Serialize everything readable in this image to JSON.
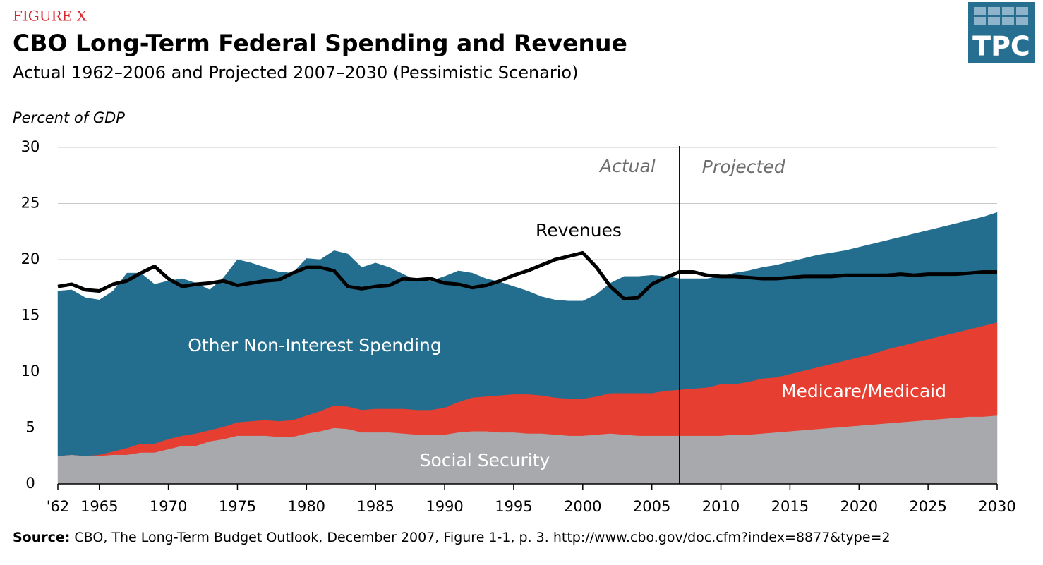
{
  "chart_data": {
    "type": "stacked-area",
    "figure_label": "FIGURE X",
    "title": "CBO Long-Term Federal Spending and Revenue",
    "subtitle": "Actual 1962–2006 and Projected 2007–2030 (Pessimistic Scenario)",
    "ylabel": "Percent of GDP",
    "logo": "TPC",
    "source_label": "Source:",
    "source": "CBO, The Long-Term Budget Outlook, December 2007, Figure 1-1, p. 3.  http://www.cbo.gov/doc.cfm?index=8877&type=2",
    "annotations": [
      "Actual",
      "Projected"
    ],
    "divider_x": 2007,
    "x": [
      1962,
      1963,
      1964,
      1965,
      1966,
      1967,
      1968,
      1969,
      1970,
      1971,
      1972,
      1973,
      1974,
      1975,
      1976,
      1977,
      1978,
      1979,
      1980,
      1981,
      1982,
      1983,
      1984,
      1985,
      1986,
      1987,
      1988,
      1989,
      1990,
      1991,
      1992,
      1993,
      1994,
      1995,
      1996,
      1997,
      1998,
      1999,
      2000,
      2001,
      2002,
      2003,
      2004,
      2005,
      2006,
      2007,
      2008,
      2009,
      2010,
      2011,
      2012,
      2013,
      2014,
      2015,
      2016,
      2017,
      2018,
      2019,
      2020,
      2021,
      2022,
      2023,
      2024,
      2025,
      2026,
      2027,
      2028,
      2029,
      2030
    ],
    "series": [
      {
        "name": "Social Security",
        "color": "#a7a9ac",
        "values": [
          2.5,
          2.6,
          2.5,
          2.5,
          2.6,
          2.6,
          2.8,
          2.8,
          3.1,
          3.4,
          3.4,
          3.8,
          4.0,
          4.3,
          4.3,
          4.3,
          4.2,
          4.2,
          4.5,
          4.7,
          5.0,
          4.9,
          4.6,
          4.6,
          4.6,
          4.5,
          4.4,
          4.4,
          4.4,
          4.6,
          4.7,
          4.7,
          4.6,
          4.6,
          4.5,
          4.5,
          4.4,
          4.3,
          4.3,
          4.4,
          4.5,
          4.4,
          4.3,
          4.3,
          4.3,
          4.3,
          4.3,
          4.3,
          4.3,
          4.4,
          4.4,
          4.5,
          4.6,
          4.7,
          4.8,
          4.9,
          5.0,
          5.1,
          5.2,
          5.3,
          5.4,
          5.5,
          5.6,
          5.7,
          5.8,
          5.9,
          6.0,
          6.0,
          6.1
        ]
      },
      {
        "name": "Medicare/Medicaid",
        "color": "#e63e30",
        "values": [
          0,
          0,
          0,
          0.1,
          0.3,
          0.6,
          0.8,
          0.8,
          0.9,
          0.9,
          1.1,
          1.0,
          1.1,
          1.2,
          1.3,
          1.4,
          1.4,
          1.5,
          1.6,
          1.8,
          2.0,
          2.0,
          2.0,
          2.1,
          2.1,
          2.2,
          2.2,
          2.2,
          2.4,
          2.7,
          3.0,
          3.1,
          3.3,
          3.4,
          3.5,
          3.4,
          3.3,
          3.3,
          3.3,
          3.4,
          3.6,
          3.7,
          3.8,
          3.8,
          4.0,
          4.1,
          4.2,
          4.3,
          4.6,
          4.5,
          4.7,
          4.9,
          4.9,
          5.1,
          5.3,
          5.5,
          5.7,
          5.9,
          6.1,
          6.3,
          6.6,
          6.8,
          7.0,
          7.2,
          7.4,
          7.6,
          7.8,
          8.1,
          8.3
        ]
      },
      {
        "name": "Other Non-Interest Spending",
        "color": "#236e8e",
        "values": [
          14.7,
          14.7,
          14.1,
          13.8,
          14.3,
          15.6,
          15.2,
          14.2,
          14.1,
          14.0,
          13.4,
          12.5,
          13.3,
          14.5,
          14.1,
          13.6,
          13.3,
          13.1,
          14.0,
          13.5,
          13.8,
          13.6,
          12.7,
          13.0,
          12.6,
          12.0,
          11.5,
          11.5,
          11.7,
          11.7,
          11.1,
          10.5,
          10.1,
          9.6,
          9.2,
          8.8,
          8.7,
          8.7,
          8.7,
          9.1,
          9.8,
          10.4,
          10.4,
          10.5,
          10.2,
          9.9,
          9.8,
          9.7,
          9.6,
          9.9,
          9.9,
          9.9,
          10.0,
          10.0,
          10.0,
          10.0,
          9.9,
          9.8,
          9.8,
          9.8,
          9.7,
          9.7,
          9.7,
          9.7,
          9.7,
          9.7,
          9.7,
          9.7,
          9.8
        ]
      }
    ],
    "line": {
      "name": "Revenues",
      "color": "#000000",
      "values": [
        17.6,
        17.8,
        17.3,
        17.2,
        17.8,
        18.1,
        18.8,
        19.4,
        18.3,
        17.6,
        17.8,
        17.9,
        18.1,
        17.7,
        17.9,
        18.1,
        18.2,
        18.8,
        19.3,
        19.3,
        19.0,
        17.6,
        17.4,
        17.6,
        17.7,
        18.3,
        18.2,
        18.3,
        17.9,
        17.8,
        17.5,
        17.7,
        18.1,
        18.6,
        19.0,
        19.5,
        20.0,
        20.3,
        20.6,
        19.3,
        17.6,
        16.5,
        16.6,
        17.8,
        18.4,
        18.9,
        18.9,
        18.6,
        18.5,
        18.5,
        18.4,
        18.3,
        18.3,
        18.4,
        18.5,
        18.5,
        18.5,
        18.6,
        18.6,
        18.6,
        18.6,
        18.7,
        18.6,
        18.7,
        18.7,
        18.7,
        18.8,
        18.9,
        18.9
      ]
    },
    "xlim": [
      1962,
      2030
    ],
    "xticks": [
      {
        "value": 1962,
        "label": "'62"
      },
      1965,
      1970,
      1975,
      1980,
      1985,
      1990,
      1995,
      2000,
      2005,
      2010,
      2015,
      2020,
      2025,
      2030
    ],
    "ylim": [
      0,
      30
    ],
    "yticks": [
      0,
      5,
      10,
      15,
      20,
      25,
      30
    ],
    "grid": true
  }
}
